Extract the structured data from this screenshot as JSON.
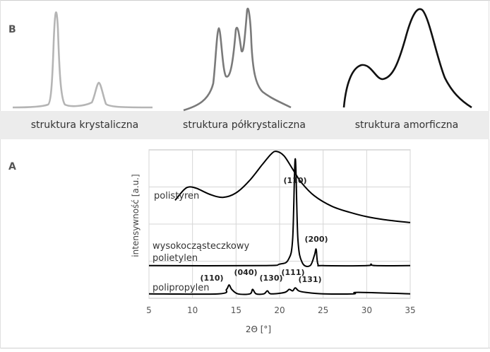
{
  "panel_b": {
    "letter": "B",
    "structures": [
      {
        "label": "struktura krystaliczna",
        "color": "#b5b5b5"
      },
      {
        "label": "struktura półkrystaliczna",
        "color": "#7a7a7a"
      },
      {
        "label": "struktura amorficzna",
        "color": "#111111"
      }
    ]
  },
  "panel_a": {
    "letter": "A"
  },
  "chart_data": {
    "type": "line",
    "xlabel": "2Θ [°]",
    "ylabel": "intensywność [a.u.]",
    "xlim": [
      5,
      35
    ],
    "xticks": [
      "5",
      "10",
      "15",
      "20",
      "25",
      "30",
      "35"
    ],
    "grid": true,
    "series": [
      {
        "name": "polistyren",
        "x": [
          8,
          9,
          9.6,
          10.5,
          12,
          13.5,
          15,
          16.5,
          18,
          19,
          19.6,
          20.5,
          21.5,
          22.5,
          24,
          26,
          28,
          30,
          32,
          35
        ],
        "y": [
          0.66,
          0.73,
          0.75,
          0.74,
          0.7,
          0.68,
          0.71,
          0.79,
          0.9,
          0.97,
          0.99,
          0.96,
          0.87,
          0.78,
          0.69,
          0.62,
          0.58,
          0.55,
          0.53,
          0.51
        ]
      },
      {
        "name": "wysokocząsteczkowy polietylen",
        "x": [
          5,
          18,
          20,
          21,
          21.5,
          21.8,
          22.1,
          22.6,
          23.5,
          24.0,
          24.2,
          24.4,
          25,
          30,
          30.5,
          31,
          35
        ],
        "y": [
          0.22,
          0.22,
          0.23,
          0.26,
          0.4,
          0.94,
          0.4,
          0.24,
          0.22,
          0.29,
          0.33,
          0.23,
          0.22,
          0.22,
          0.23,
          0.22,
          0.22
        ]
      },
      {
        "name": "polipropylen",
        "x": [
          5,
          13,
          13.9,
          14.2,
          14.5,
          15.2,
          16.6,
          16.9,
          17.3,
          18.2,
          18.6,
          19.0,
          20.6,
          21.1,
          21.5,
          21.8,
          22.2,
          23,
          25,
          28.5,
          29,
          35
        ],
        "y": [
          0.03,
          0.03,
          0.06,
          0.09,
          0.06,
          0.03,
          0.03,
          0.06,
          0.03,
          0.03,
          0.05,
          0.03,
          0.04,
          0.06,
          0.05,
          0.07,
          0.05,
          0.04,
          0.03,
          0.03,
          0.04,
          0.03
        ]
      }
    ],
    "annotations": [
      {
        "text": "(110)",
        "x": 21.8
      },
      {
        "text": "(200)",
        "x": 24.2
      },
      {
        "text": "(110)",
        "x": 14.2
      },
      {
        "text": "(040)",
        "x": 16.9
      },
      {
        "text": "(130)",
        "x": 18.6
      },
      {
        "text": "(111)",
        "x": 21.1
      },
      {
        "text": "(131)",
        "x": 21.8
      }
    ]
  }
}
